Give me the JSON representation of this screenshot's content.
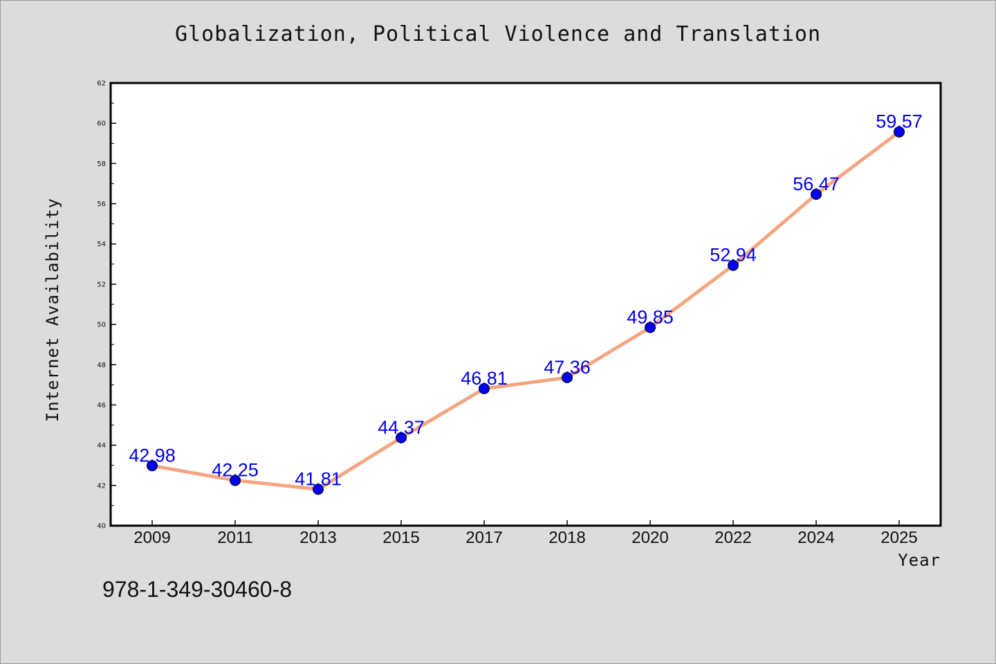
{
  "chart_data": {
    "type": "line",
    "title": "Globalization, Political Violence and Translation",
    "xlabel": "Year",
    "ylabel": "Internet Availability",
    "categories": [
      "2009",
      "2011",
      "2013",
      "2015",
      "2017",
      "2018",
      "2020",
      "2022",
      "2024",
      "2025"
    ],
    "series": [
      {
        "values": [
          42.98,
          42.25,
          41.81,
          44.37,
          46.81,
          47.36,
          49.85,
          52.94,
          56.47,
          59.57
        ],
        "data_labels": [
          "42.98",
          "42.25",
          "41.81",
          "44.37",
          "46.81",
          "47.36",
          "49.85",
          "52.94",
          "56.47",
          "59.57"
        ],
        "line_color": "#f4a582",
        "marker_color": "#0000ee",
        "label_color": "#0000ee"
      }
    ],
    "ylim": [
      40,
      62
    ],
    "yticks": [
      "40",
      "42",
      "44",
      "46",
      "48",
      "50",
      "52",
      "54",
      "56",
      "58",
      "60",
      "62"
    ],
    "grid": false,
    "legend": "none"
  },
  "footer_text": "978-1-349-30460-8"
}
